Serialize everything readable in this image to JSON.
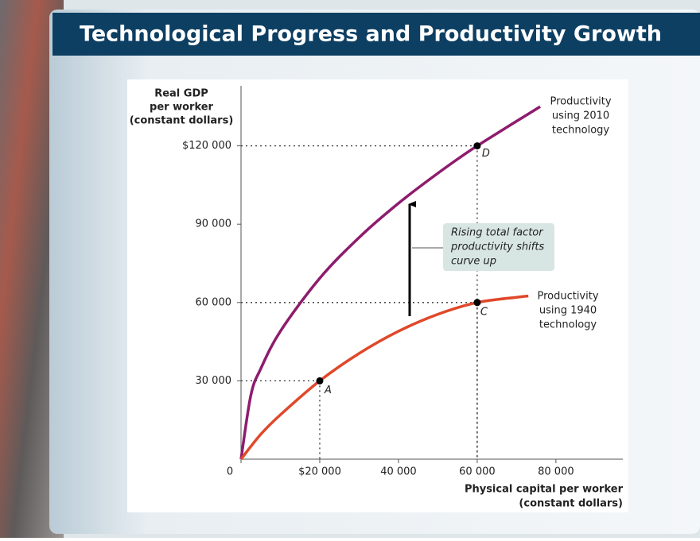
{
  "chart_data": {
    "type": "line",
    "title": "Technological Progress and Productivity Growth",
    "y_label": [
      "Real GDP",
      "per worker",
      "(constant dollars)"
    ],
    "x_label": [
      "Physical capital per worker",
      "(constant dollars)"
    ],
    "xlim": [
      0,
      97000
    ],
    "ylim": [
      0,
      143000
    ],
    "xticks": [
      0,
      {
        "value": 20000,
        "label": "$20 000"
      },
      {
        "value": 40000,
        "label": "40 000"
      },
      {
        "value": 60000,
        "label": "60 000"
      },
      {
        "value": 80000,
        "label": "80 000"
      }
    ],
    "yticks": [
      {
        "value": 30000,
        "label": "30 000"
      },
      {
        "value": 60000,
        "label": "60 000"
      },
      {
        "value": 90000,
        "label": "90 000"
      },
      {
        "value": 120000,
        "label": "$120 000"
      }
    ],
    "series": [
      {
        "name": [
          "Productivity",
          "using 2010",
          "technology"
        ],
        "color": "#8e1c6e",
        "x": [
          0,
          2500,
          5000,
          10000,
          20000,
          30000,
          40000,
          50000,
          60000,
          76000
        ],
        "values": [
          0,
          24500,
          34600,
          49000,
          69300,
          84900,
          98000,
          109500,
          120000,
          135000
        ]
      },
      {
        "name": [
          "Productivity",
          "using 1940",
          "technology"
        ],
        "color": "#e0482a",
        "x": [
          0,
          5000,
          10000,
          20000,
          30000,
          40000,
          50000,
          60000,
          70000,
          73000
        ],
        "values": [
          0,
          9500,
          17000,
          30000,
          40500,
          49000,
          55500,
          60000,
          62000,
          62500
        ]
      }
    ],
    "points": [
      {
        "label": "A",
        "x": 20000,
        "y": 30000
      },
      {
        "label": "C",
        "x": 60000,
        "y": 60000
      },
      {
        "label": "D",
        "x": 60000,
        "y": 120000
      }
    ],
    "annotation": [
      "Rising total factor",
      "productivity shifts",
      "curve up"
    ]
  }
}
